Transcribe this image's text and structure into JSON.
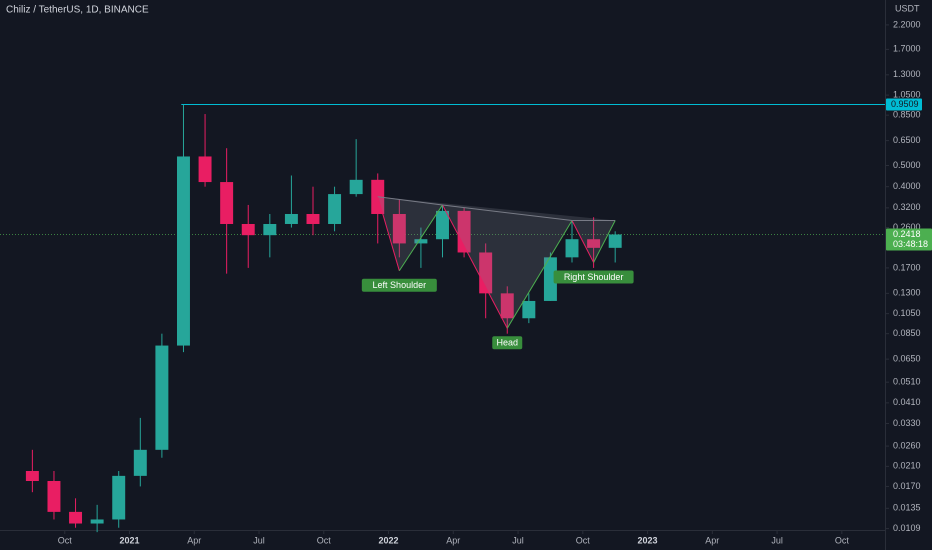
{
  "chart_data": {
    "type": "candlestick",
    "title": "Chiliz / TetherUS, 1D, BINANCE",
    "y_axis_unit": "USDT",
    "log_scale": true,
    "grid": false,
    "up_color": "#26a69a",
    "down_color": "#e91e63",
    "x": [
      "2020-08",
      "2020-09",
      "2020-10",
      "2020-11",
      "2020-12",
      "2021-01",
      "2021-02",
      "2021-03",
      "2021-04",
      "2021-05",
      "2021-06",
      "2021-07",
      "2021-08",
      "2021-09",
      "2021-10",
      "2021-11",
      "2021-12",
      "2022-01",
      "2022-02",
      "2022-03",
      "2022-04",
      "2022-05",
      "2022-06",
      "2022-07",
      "2022-08",
      "2022-09",
      "2022-10",
      "2022-11"
    ],
    "open": [
      0.02,
      0.018,
      0.013,
      0.0115,
      0.012,
      0.019,
      0.025,
      0.075,
      0.55,
      0.42,
      0.27,
      0.24,
      0.27,
      0.3,
      0.27,
      0.37,
      0.43,
      0.3,
      0.22,
      0.23,
      0.31,
      0.2,
      0.13,
      0.1,
      0.12,
      0.19,
      0.23,
      0.21
    ],
    "high": [
      0.025,
      0.02,
      0.015,
      0.014,
      0.02,
      0.035,
      0.085,
      0.95,
      0.86,
      0.6,
      0.33,
      0.3,
      0.45,
      0.4,
      0.4,
      0.66,
      0.46,
      0.35,
      0.26,
      0.33,
      0.32,
      0.22,
      0.14,
      0.13,
      0.2,
      0.28,
      0.29,
      0.25
    ],
    "low": [
      0.016,
      0.012,
      0.011,
      0.0105,
      0.011,
      0.017,
      0.023,
      0.07,
      0.4,
      0.16,
      0.17,
      0.19,
      0.26,
      0.24,
      0.25,
      0.36,
      0.22,
      0.19,
      0.17,
      0.19,
      0.19,
      0.1,
      0.085,
      0.095,
      0.12,
      0.18,
      0.17,
      0.18
    ],
    "close": [
      0.018,
      0.013,
      0.0115,
      0.012,
      0.019,
      0.025,
      0.075,
      0.55,
      0.42,
      0.27,
      0.24,
      0.27,
      0.3,
      0.27,
      0.37,
      0.43,
      0.3,
      0.22,
      0.23,
      0.31,
      0.2,
      0.13,
      0.1,
      0.12,
      0.19,
      0.23,
      0.21,
      0.2418
    ],
    "xlim": [
      "2020-07",
      "2023-12"
    ],
    "xticks": [
      {
        "value": "2020-10",
        "label": "Oct"
      },
      {
        "value": "2021-01",
        "label": "2021"
      },
      {
        "value": "2021-04",
        "label": "Apr"
      },
      {
        "value": "2021-07",
        "label": "Jul"
      },
      {
        "value": "2021-10",
        "label": "Oct"
      },
      {
        "value": "2022-01",
        "label": "2022"
      },
      {
        "value": "2022-04",
        "label": "Apr"
      },
      {
        "value": "2022-07",
        "label": "Jul"
      },
      {
        "value": "2022-10",
        "label": "Oct"
      },
      {
        "value": "2023-01",
        "label": "2023"
      },
      {
        "value": "2023-04",
        "label": "Apr"
      },
      {
        "value": "2023-07",
        "label": "Jul"
      },
      {
        "value": "2023-10",
        "label": "Oct"
      }
    ],
    "ylim": [
      0.0087,
      2.86
    ],
    "yticks": [
      {
        "value": 2.2,
        "label": "2.2000"
      },
      {
        "value": 1.7,
        "label": "1.7000"
      },
      {
        "value": 1.3,
        "label": "1.3000"
      },
      {
        "value": 1.05,
        "label": "1.0500"
      },
      {
        "value": 0.85,
        "label": "0.8500"
      },
      {
        "value": 0.65,
        "label": "0.6500"
      },
      {
        "value": 0.5,
        "label": "0.5000"
      },
      {
        "value": 0.4,
        "label": "0.4000"
      },
      {
        "value": 0.32,
        "label": "0.3200"
      },
      {
        "value": 0.26,
        "label": "0.2600"
      },
      {
        "value": 0.17,
        "label": "0.1700"
      },
      {
        "value": 0.13,
        "label": "0.1300"
      },
      {
        "value": 0.105,
        "label": "0.1050"
      },
      {
        "value": 0.085,
        "label": "0.0850"
      },
      {
        "value": 0.065,
        "label": "0.0650"
      },
      {
        "value": 0.051,
        "label": "0.0510"
      },
      {
        "value": 0.041,
        "label": "0.0410"
      },
      {
        "value": 0.033,
        "label": "0.0330"
      },
      {
        "value": 0.026,
        "label": "0.0260"
      },
      {
        "value": 0.021,
        "label": "0.0210"
      },
      {
        "value": 0.017,
        "label": "0.0170"
      },
      {
        "value": 0.0135,
        "label": "0.0135"
      },
      {
        "value": 0.0109,
        "label": "0.0109"
      }
    ],
    "resistance": {
      "value": 0.9509,
      "start": "2021-03",
      "color": "#00bcd4"
    },
    "last_price": {
      "value": 0.2418,
      "countdown": "03:48:18",
      "color": "#4caf50"
    },
    "pattern": {
      "x": [
        "2021-12",
        "2022-01",
        "2022-03",
        "2022-06",
        "2022-09",
        "2022-10",
        "2022-11"
      ],
      "y": [
        0.36,
        0.165,
        0.33,
        0.09,
        0.28,
        0.18,
        0.28
      ],
      "labels": [
        null,
        "Left Shoulder",
        null,
        "Head",
        null,
        "Right Shoulder",
        null
      ]
    }
  }
}
